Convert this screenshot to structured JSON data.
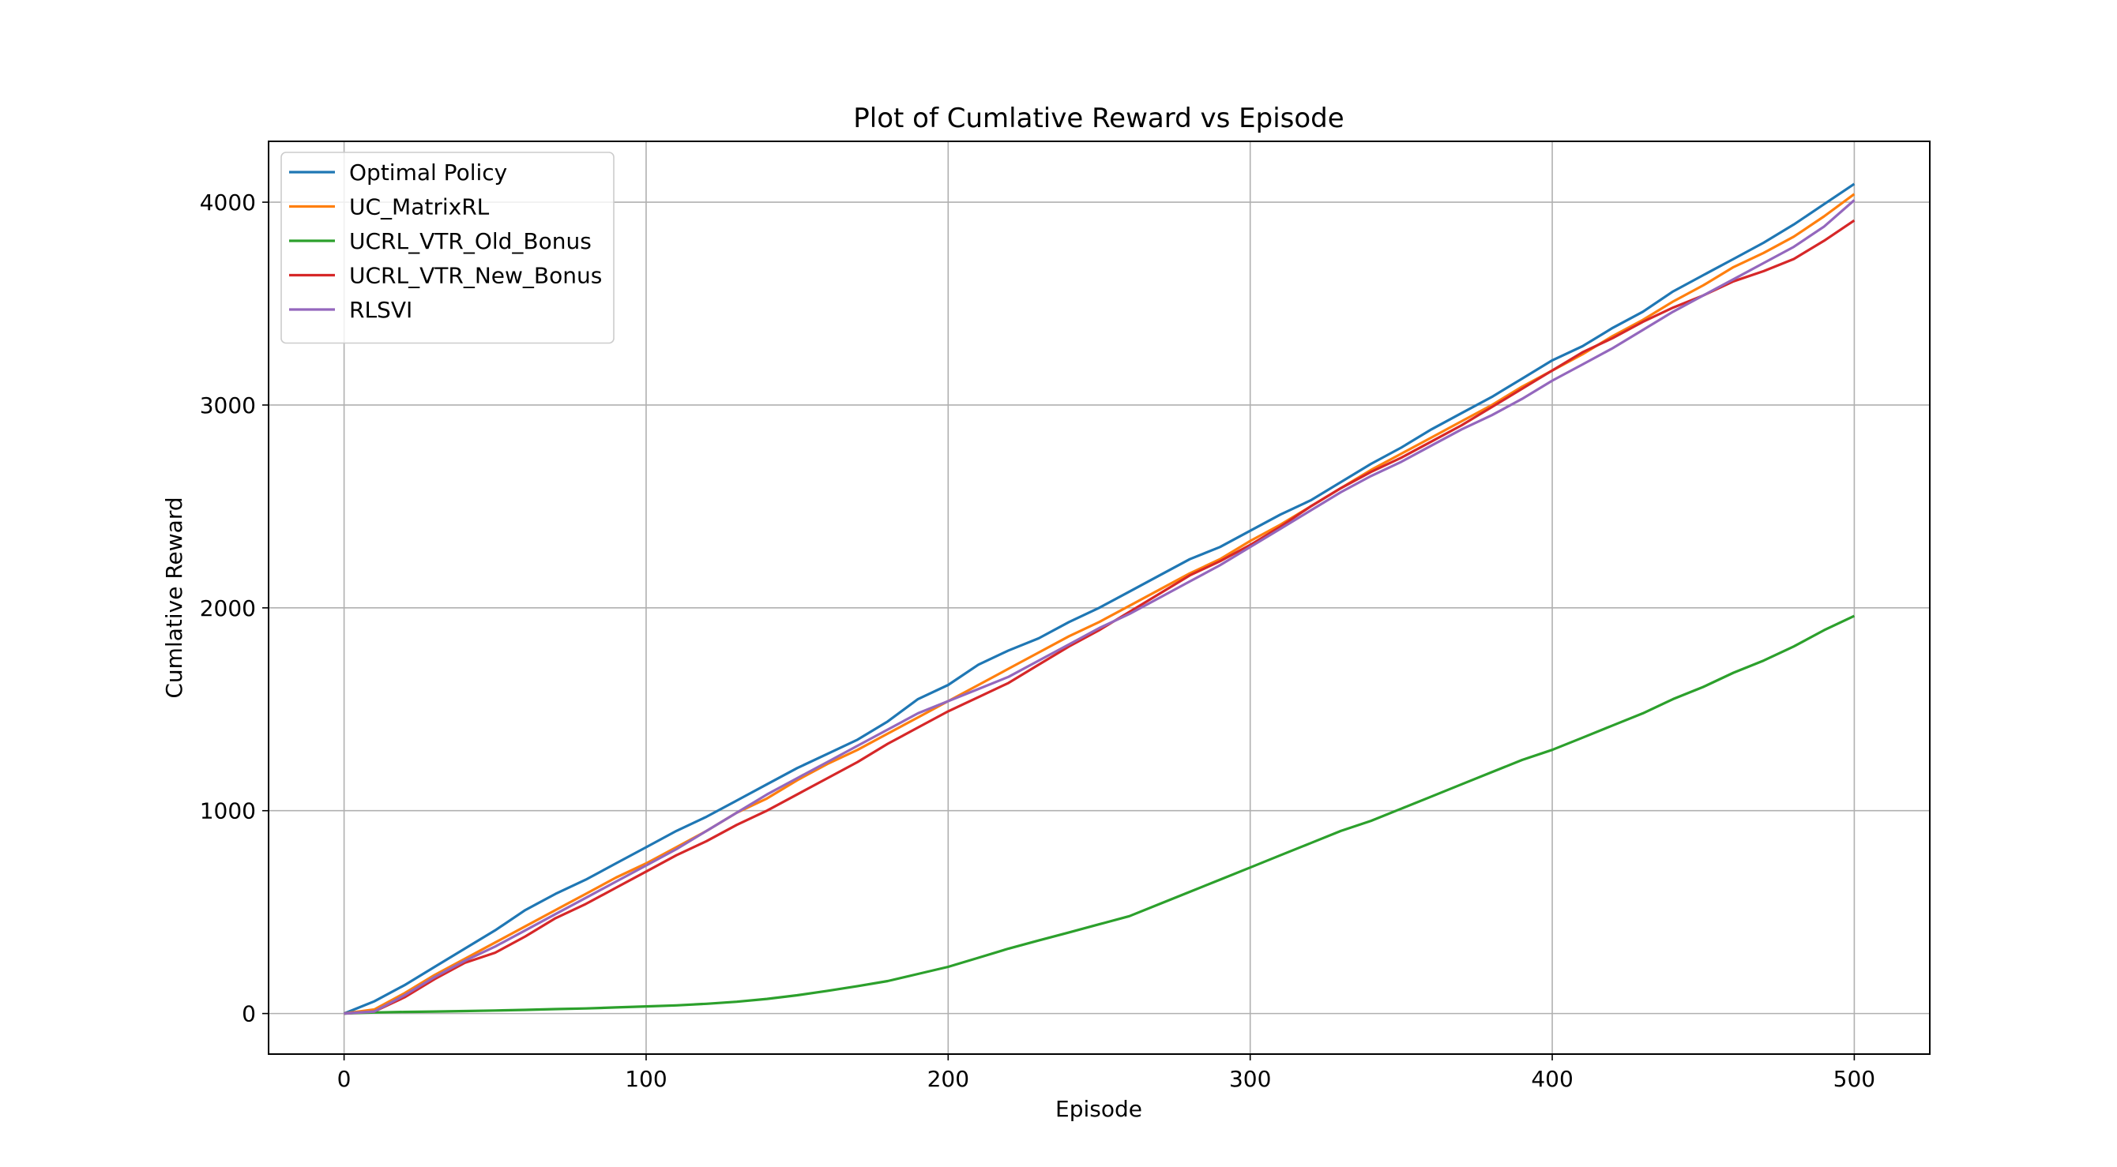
{
  "chart_data": {
    "type": "line",
    "title": "Plot of Cumlative Reward vs Episode",
    "xlabel": "Episode",
    "ylabel": "Cumlative Reward",
    "xlim": [
      -25,
      525
    ],
    "ylim": [
      -200,
      4300
    ],
    "xticks": [
      0,
      100,
      200,
      300,
      400,
      500
    ],
    "yticks": [
      0,
      1000,
      2000,
      3000,
      4000
    ],
    "xtick_labels": [
      "0",
      "100",
      "200",
      "300",
      "400",
      "500"
    ],
    "ytick_labels": [
      "0",
      "1000",
      "2000",
      "3000",
      "4000"
    ],
    "grid": true,
    "legend_position": "top-left",
    "series": [
      {
        "name": "Optimal Policy",
        "color": "#1f77b4",
        "x": [
          0,
          10,
          20,
          30,
          40,
          50,
          60,
          70,
          80,
          90,
          100,
          110,
          120,
          130,
          140,
          150,
          160,
          170,
          180,
          190,
          200,
          210,
          220,
          230,
          240,
          250,
          260,
          270,
          280,
          290,
          300,
          310,
          320,
          330,
          340,
          350,
          360,
          370,
          380,
          390,
          400,
          410,
          420,
          430,
          440,
          450,
          460,
          470,
          480,
          490,
          500
        ],
        "y": [
          0,
          60,
          140,
          230,
          320,
          410,
          510,
          590,
          660,
          740,
          820,
          900,
          970,
          1050,
          1130,
          1210,
          1280,
          1350,
          1440,
          1550,
          1620,
          1720,
          1790,
          1850,
          1930,
          2000,
          2080,
          2160,
          2240,
          2300,
          2380,
          2460,
          2530,
          2620,
          2710,
          2790,
          2880,
          2960,
          3040,
          3130,
          3220,
          3290,
          3380,
          3460,
          3560,
          3640,
          3720,
          3800,
          3890,
          3990,
          4090
        ]
      },
      {
        "name": "UC_MatrixRL",
        "color": "#ff7f0e",
        "x": [
          0,
          10,
          20,
          30,
          40,
          50,
          60,
          70,
          80,
          90,
          100,
          110,
          120,
          130,
          140,
          150,
          160,
          170,
          180,
          190,
          200,
          210,
          220,
          230,
          240,
          250,
          260,
          270,
          280,
          290,
          300,
          310,
          320,
          330,
          340,
          350,
          360,
          370,
          380,
          390,
          400,
          410,
          420,
          430,
          440,
          450,
          460,
          470,
          480,
          490,
          500
        ],
        "y": [
          0,
          20,
          100,
          190,
          270,
          350,
          430,
          510,
          590,
          670,
          740,
          820,
          900,
          990,
          1060,
          1150,
          1230,
          1300,
          1380,
          1460,
          1540,
          1620,
          1700,
          1780,
          1860,
          1930,
          2010,
          2090,
          2170,
          2240,
          2330,
          2410,
          2500,
          2590,
          2680,
          2760,
          2840,
          2920,
          3000,
          3090,
          3170,
          3250,
          3340,
          3420,
          3510,
          3590,
          3680,
          3750,
          3830,
          3930,
          4040
        ]
      },
      {
        "name": "UCRL_VTR_Old_Bonus",
        "color": "#2ca02c",
        "x": [
          0,
          10,
          20,
          30,
          40,
          50,
          60,
          70,
          80,
          90,
          100,
          110,
          120,
          130,
          140,
          150,
          160,
          170,
          180,
          190,
          200,
          210,
          220,
          230,
          240,
          250,
          260,
          270,
          280,
          290,
          300,
          310,
          320,
          330,
          340,
          350,
          360,
          370,
          380,
          390,
          400,
          410,
          420,
          430,
          440,
          450,
          460,
          470,
          480,
          490,
          500
        ],
        "y": [
          0,
          5,
          8,
          10,
          12,
          15,
          18,
          22,
          25,
          30,
          35,
          40,
          48,
          58,
          72,
          90,
          112,
          135,
          160,
          195,
          230,
          275,
          320,
          360,
          400,
          440,
          480,
          540,
          600,
          660,
          720,
          780,
          840,
          900,
          950,
          1010,
          1070,
          1130,
          1190,
          1250,
          1300,
          1360,
          1420,
          1480,
          1550,
          1610,
          1680,
          1740,
          1810,
          1890,
          1960
        ]
      },
      {
        "name": "UCRL_VTR_New_Bonus",
        "color": "#d62728",
        "x": [
          0,
          10,
          20,
          30,
          40,
          50,
          60,
          70,
          80,
          90,
          100,
          110,
          120,
          130,
          140,
          150,
          160,
          170,
          180,
          190,
          200,
          210,
          220,
          230,
          240,
          250,
          260,
          270,
          280,
          290,
          300,
          310,
          320,
          330,
          340,
          350,
          360,
          370,
          380,
          390,
          400,
          410,
          420,
          430,
          440,
          450,
          460,
          470,
          480,
          490,
          500
        ],
        "y": [
          0,
          10,
          80,
          170,
          250,
          300,
          380,
          470,
          540,
          620,
          700,
          780,
          850,
          930,
          1000,
          1080,
          1160,
          1240,
          1330,
          1410,
          1490,
          1560,
          1630,
          1720,
          1810,
          1890,
          1980,
          2070,
          2160,
          2230,
          2310,
          2400,
          2500,
          2590,
          2670,
          2740,
          2820,
          2900,
          2990,
          3080,
          3170,
          3260,
          3330,
          3410,
          3480,
          3540,
          3610,
          3660,
          3720,
          3810,
          3910
        ]
      },
      {
        "name": "RLSVI",
        "color": "#9467bd",
        "x": [
          0,
          10,
          20,
          30,
          40,
          50,
          60,
          70,
          80,
          90,
          100,
          110,
          120,
          130,
          140,
          150,
          160,
          170,
          180,
          190,
          200,
          210,
          220,
          230,
          240,
          250,
          260,
          270,
          280,
          290,
          300,
          310,
          320,
          330,
          340,
          350,
          360,
          370,
          380,
          390,
          400,
          410,
          420,
          430,
          440,
          450,
          460,
          470,
          480,
          490,
          500
        ],
        "y": [
          0,
          10,
          90,
          180,
          260,
          330,
          410,
          490,
          570,
          650,
          730,
          810,
          900,
          990,
          1080,
          1160,
          1240,
          1320,
          1400,
          1480,
          1540,
          1600,
          1660,
          1740,
          1820,
          1900,
          1970,
          2050,
          2130,
          2210,
          2300,
          2390,
          2480,
          2570,
          2650,
          2720,
          2800,
          2880,
          2950,
          3030,
          3120,
          3200,
          3280,
          3370,
          3460,
          3540,
          3620,
          3700,
          3780,
          3880,
          4010
        ]
      }
    ]
  }
}
